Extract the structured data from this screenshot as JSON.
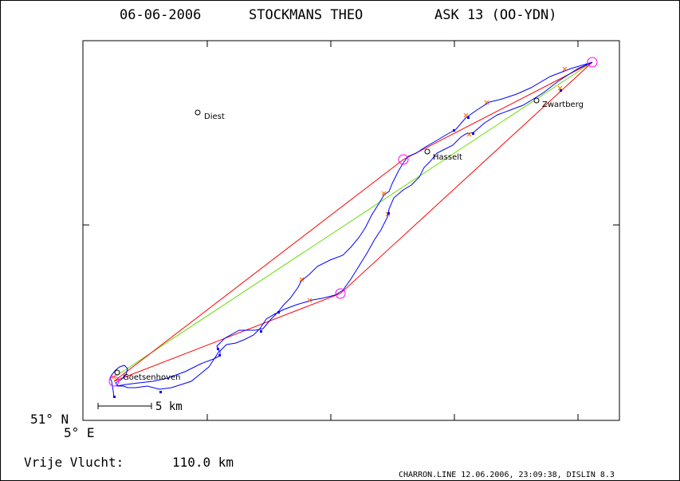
{
  "header": {
    "date": "06-06-2006",
    "pilot": "STOCKMANS THEO",
    "aircraft": "ASK 13 (OO-YDN)"
  },
  "axes": {
    "lat_label": "51° N",
    "lon_label": "5° E"
  },
  "scale_bar": {
    "label": "5 km"
  },
  "places": [
    {
      "name": "Diest"
    },
    {
      "name": "Hasselt"
    },
    {
      "name": "Zwartberg"
    },
    {
      "name": "Goetsenhoven"
    }
  ],
  "footer": {
    "distance_label": "Vrije Vlucht:",
    "distance_value": "110.0 km",
    "credits": "CHARRON.LINE 12.06.2006, 23:09:38, DISLIN 8.3"
  },
  "colors": {
    "track": "#0000ff",
    "task_legs": "#ff0000",
    "straight_line": "#66dd00",
    "turnpoint_circle": "#ff00ff",
    "fix_marker": "#ff6600"
  }
}
